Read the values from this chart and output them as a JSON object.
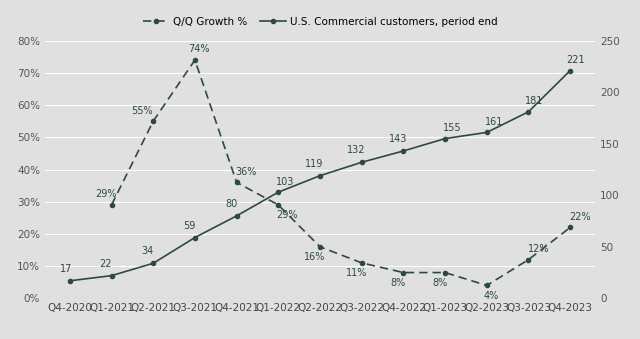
{
  "quarters": [
    "Q4-2020",
    "Q1-2021",
    "Q2-2021",
    "Q3-2021",
    "Q4-2021",
    "Q1-2022",
    "Q2-2022",
    "Q3-2022",
    "Q4-2022",
    "Q1-2023",
    "Q2-2023",
    "Q3-2023",
    "Q4-2023"
  ],
  "customers": [
    17,
    22,
    34,
    59,
    80,
    103,
    119,
    132,
    143,
    155,
    161,
    181,
    221
  ],
  "growth": [
    null,
    29,
    55,
    74,
    36,
    29,
    16,
    11,
    8,
    8,
    4,
    12,
    22
  ],
  "customer_labels": [
    "17",
    "22",
    "34",
    "59",
    "80",
    "103",
    "119",
    "132",
    "143",
    "155",
    "161",
    "181",
    "221"
  ],
  "growth_labels": [
    "",
    "29%",
    "55%",
    "74%",
    "36%",
    "29%",
    "16%",
    "11%",
    "8%",
    "8%",
    "4%",
    "12%",
    "22%"
  ],
  "line_color": "#2d4a3e",
  "bg_color": "#e0e0e0",
  "legend_dashed": "Q/Q Growth %",
  "legend_solid": "U.S. Commercial customers, period end",
  "ylim_left": [
    0,
    80
  ],
  "ylim_right": [
    0,
    250
  ],
  "yticks_left": [
    0,
    10,
    20,
    30,
    40,
    50,
    60,
    70,
    80
  ],
  "yticks_right": [
    0,
    50,
    100,
    150,
    200,
    250
  ],
  "label_fontsize": 7.0,
  "tick_fontsize": 7.5
}
